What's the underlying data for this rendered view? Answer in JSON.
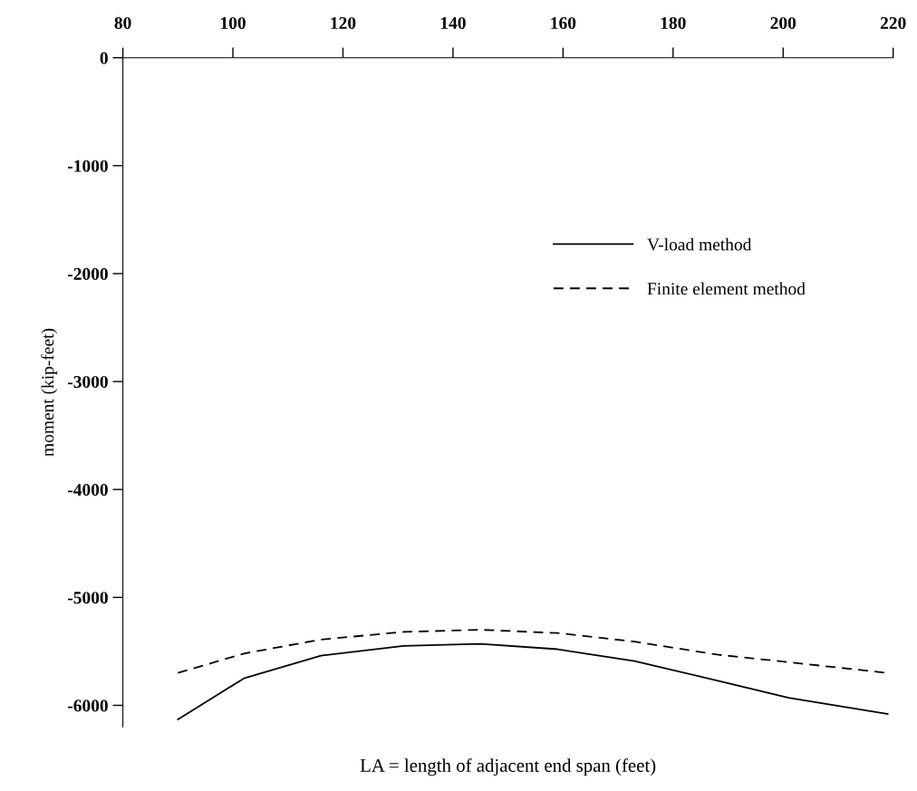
{
  "chart_data": {
    "type": "line",
    "xlabel": "LA = length of adjacent end span (feet)",
    "ylabel": "moment (kip-feet)",
    "xlim": [
      80,
      220
    ],
    "xticks": [
      80,
      100,
      120,
      140,
      160,
      180,
      200,
      220
    ],
    "ylim": [
      -6200,
      0
    ],
    "yticks": [
      0,
      -1000,
      -2000,
      -3000,
      -4000,
      -5000,
      -6000
    ],
    "legend": "top right",
    "grid": false,
    "marker": "none",
    "series": [
      {
        "name": "V-load method",
        "color": "#000000",
        "line_style": "solid",
        "x": [
          90,
          102,
          116,
          131,
          145,
          159,
          173,
          188,
          201,
          219
        ],
        "values": [
          -6130,
          -5750,
          -5540,
          -5450,
          -5430,
          -5480,
          -5590,
          -5770,
          -5930,
          -6080
        ]
      },
      {
        "name": "Finite element method",
        "color": "#000000",
        "line_style": "dashed",
        "x": [
          90,
          102,
          116,
          131,
          145,
          159,
          173,
          188,
          201,
          219
        ],
        "values": [
          -5700,
          -5520,
          -5390,
          -5320,
          -5300,
          -5330,
          -5410,
          -5530,
          -5600,
          -5700
        ]
      }
    ]
  }
}
